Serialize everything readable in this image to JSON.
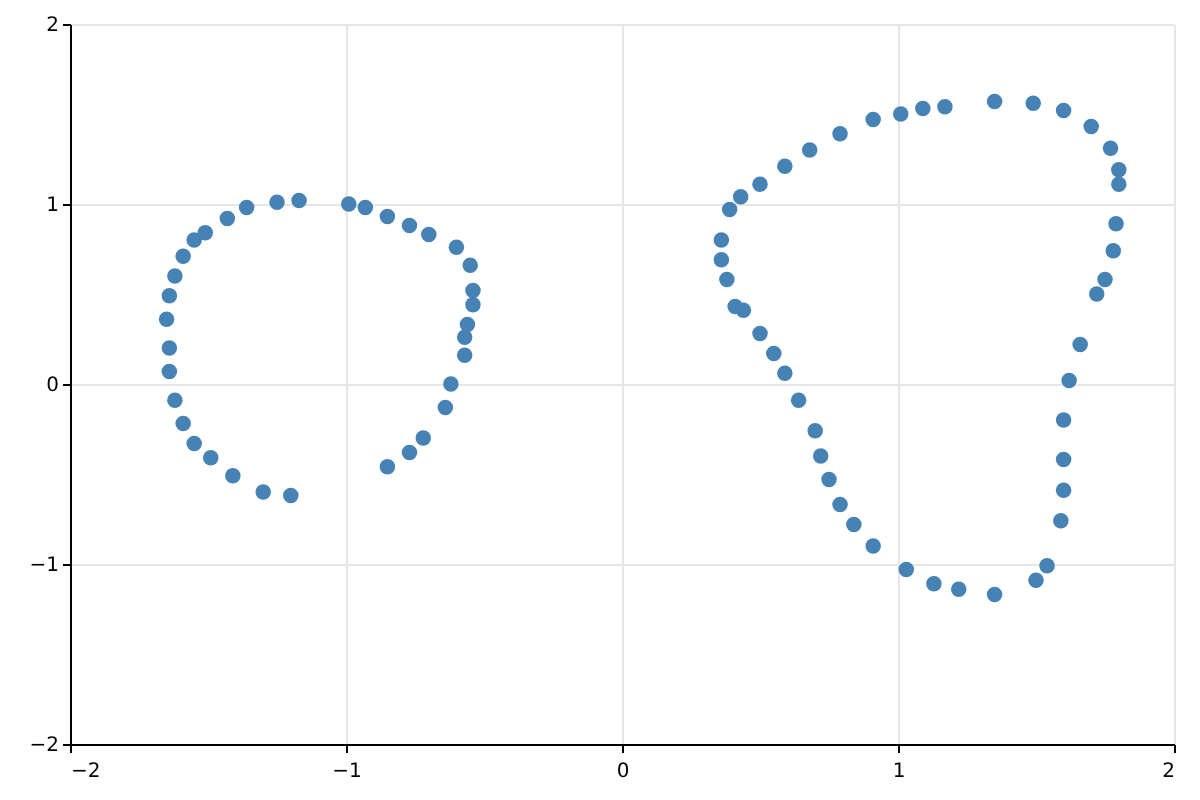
{
  "chart_data": {
    "type": "scatter",
    "xlim": [
      -2,
      2
    ],
    "ylim": [
      -2,
      2
    ],
    "xticks": [
      -2,
      -1,
      0,
      1,
      2
    ],
    "yticks": [
      -2,
      -1,
      0,
      1,
      2
    ],
    "grid": true,
    "marker": "circle",
    "series": [
      {
        "color": "#4682b4",
        "x": [
          -1.2,
          -1.3,
          -1.41,
          -1.49,
          -1.55,
          -1.59,
          -1.62,
          -1.64,
          -1.64,
          -1.65,
          -1.64,
          -1.62,
          -1.59,
          -1.55,
          -1.51,
          -1.43,
          -1.36,
          -1.25,
          -1.17,
          -0.99,
          -0.93,
          -0.85,
          -0.77,
          -0.7,
          -0.6,
          -0.55,
          -0.54,
          -0.54,
          -0.56,
          -0.57,
          -0.57,
          -0.62,
          -0.64,
          -0.72,
          -0.77,
          -0.85,
          0.36,
          0.36,
          0.39,
          0.43,
          0.5,
          0.59,
          0.68,
          0.79,
          0.91,
          1.01,
          1.09,
          1.17,
          1.35,
          1.49,
          1.6,
          1.7,
          1.77,
          1.8,
          1.8,
          1.79,
          1.78,
          1.75,
          1.72,
          1.66,
          1.62,
          1.6,
          1.6,
          1.6,
          1.59,
          1.54,
          1.5,
          1.35,
          1.22,
          1.13,
          1.03,
          0.91,
          0.84,
          0.79,
          0.75,
          0.72,
          0.7,
          0.64,
          0.59,
          0.55,
          0.5,
          0.44,
          0.41,
          0.38
        ],
        "values": [
          -0.62,
          -0.6,
          -0.51,
          -0.41,
          -0.33,
          -0.22,
          -0.09,
          0.07,
          0.2,
          0.36,
          0.49,
          0.6,
          0.71,
          0.8,
          0.84,
          0.92,
          0.98,
          1.01,
          1.02,
          1.0,
          0.98,
          0.93,
          0.88,
          0.83,
          0.76,
          0.66,
          0.52,
          0.44,
          0.33,
          0.26,
          0.16,
          0.0,
          -0.13,
          -0.3,
          -0.38,
          -0.46,
          0.69,
          0.8,
          0.97,
          1.04,
          1.11,
          1.21,
          1.3,
          1.39,
          1.47,
          1.5,
          1.53,
          1.54,
          1.57,
          1.56,
          1.52,
          1.43,
          1.31,
          1.19,
          1.11,
          0.89,
          0.74,
          0.58,
          0.5,
          0.22,
          0.02,
          -0.2,
          -0.42,
          -0.59,
          -0.76,
          -1.01,
          -1.09,
          -1.17,
          -1.14,
          -1.11,
          -1.03,
          -0.9,
          -0.78,
          -0.67,
          -0.53,
          -0.4,
          -0.26,
          -0.09,
          0.06,
          0.17,
          0.28,
          0.41,
          0.43,
          0.58
        ]
      }
    ]
  }
}
